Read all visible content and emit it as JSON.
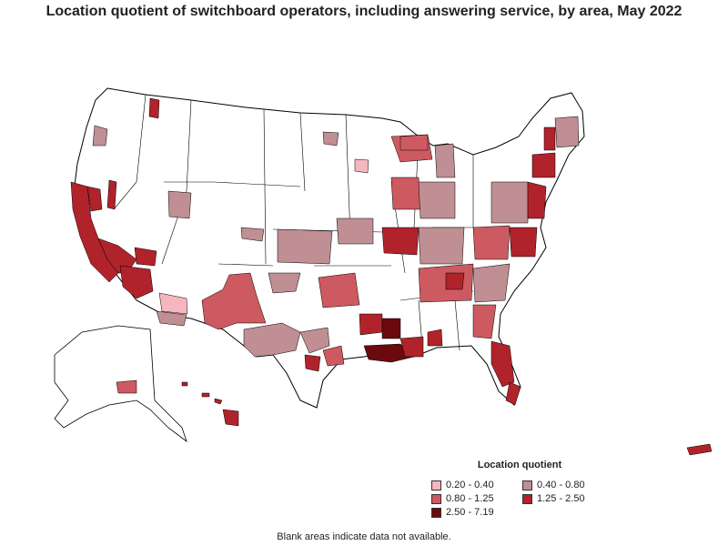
{
  "title": "Location quotient of switchboard operators, including answering service, by area, May 2022",
  "legend": {
    "title": "Location quotient",
    "items": [
      {
        "label": "0.20 - 0.40",
        "color": "#f7b6bd"
      },
      {
        "label": "0.40 - 0.80",
        "color": "#bf8f93"
      },
      {
        "label": "0.80 - 1.25",
        "color": "#cd5a60"
      },
      {
        "label": "1.25 - 2.50",
        "color": "#b0232b"
      },
      {
        "label": "2.50 - 7.19",
        "color": "#6a0a0f"
      }
    ]
  },
  "note": "Blank areas indicate data not available.",
  "colors": {
    "outline": "#000000",
    "blank": "#ffffff"
  }
}
